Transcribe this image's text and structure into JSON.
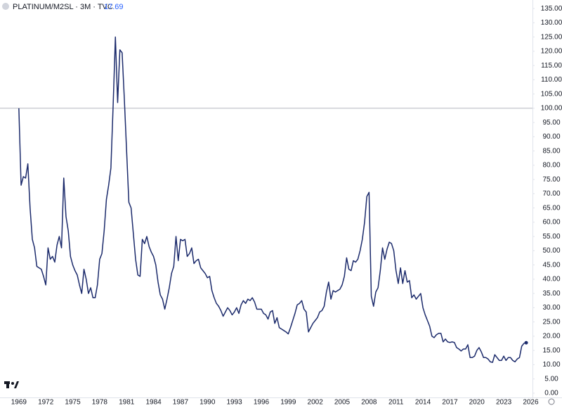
{
  "chart_data": {
    "type": "line",
    "title": "PLATINUM/M2SL · 3M · TVC",
    "last_value": 17.69,
    "reference_line": 100,
    "xlim": [
      1966.9,
      2026.2
    ],
    "ylim": [
      -1.5,
      138
    ],
    "xticks": [
      1969,
      1972,
      1975,
      1978,
      1981,
      1984,
      1987,
      1990,
      1993,
      1996,
      1999,
      2002,
      2005,
      2008,
      2011,
      2014,
      2017,
      2020,
      2023,
      2026
    ],
    "yticks": [
      {
        "value": 0,
        "label": "0.00"
      },
      {
        "value": 5,
        "label": "5.00"
      },
      {
        "value": 10,
        "label": "10.00"
      },
      {
        "value": 15,
        "label": "15.00"
      },
      {
        "value": 20,
        "label": "20.00"
      },
      {
        "value": 25,
        "label": "25.00"
      },
      {
        "value": 30,
        "label": "30.00"
      },
      {
        "value": 35,
        "label": "35.00"
      },
      {
        "value": 40,
        "label": "40.00"
      },
      {
        "value": 45,
        "label": "45.00"
      },
      {
        "value": 50,
        "label": "50.00"
      },
      {
        "value": 55,
        "label": "55.00"
      },
      {
        "value": 60,
        "label": "60.00"
      },
      {
        "value": 65,
        "label": "65.00"
      },
      {
        "value": 70,
        "label": "70.00"
      },
      {
        "value": 75,
        "label": "75.00"
      },
      {
        "value": 80,
        "label": "80.00"
      },
      {
        "value": 85,
        "label": "85.00"
      },
      {
        "value": 90,
        "label": "90.00"
      },
      {
        "value": 95,
        "label": "95.00"
      },
      {
        "value": 100,
        "label": "100.00"
      },
      {
        "value": 105,
        "label": "105.00"
      },
      {
        "value": 110,
        "label": "110.00"
      },
      {
        "value": 115,
        "label": "115.00"
      },
      {
        "value": 120,
        "label": "120.00"
      },
      {
        "value": 125,
        "label": "125.00"
      },
      {
        "value": 130,
        "label": "130.00"
      },
      {
        "value": 135,
        "label": "135.00"
      }
    ],
    "x": [
      1969,
      1969.25,
      1969.5,
      1969.75,
      1970,
      1970.25,
      1970.5,
      1970.75,
      1971,
      1971.25,
      1971.5,
      1971.75,
      1972,
      1972.25,
      1972.5,
      1972.75,
      1973,
      1973.25,
      1973.5,
      1973.75,
      1974,
      1974.25,
      1974.5,
      1974.75,
      1975,
      1975.25,
      1975.5,
      1975.75,
      1976,
      1976.25,
      1976.5,
      1976.75,
      1977,
      1977.25,
      1977.5,
      1977.75,
      1978,
      1978.25,
      1978.5,
      1978.75,
      1979,
      1979.25,
      1979.5,
      1979.75,
      1980,
      1980.25,
      1980.5,
      1980.75,
      1981,
      1981.25,
      1981.5,
      1981.75,
      1982,
      1982.25,
      1982.5,
      1982.75,
      1983,
      1983.25,
      1983.5,
      1983.75,
      1984,
      1984.25,
      1984.5,
      1984.75,
      1985,
      1985.25,
      1985.5,
      1985.75,
      1986,
      1986.25,
      1986.5,
      1986.75,
      1987,
      1987.25,
      1987.5,
      1987.75,
      1988,
      1988.25,
      1988.5,
      1988.75,
      1989,
      1989.25,
      1989.5,
      1989.75,
      1990,
      1990.25,
      1990.5,
      1990.75,
      1991,
      1991.25,
      1991.5,
      1991.75,
      1992,
      1992.25,
      1992.5,
      1992.75,
      1993,
      1993.25,
      1993.5,
      1993.75,
      1994,
      1994.25,
      1994.5,
      1994.75,
      1995,
      1995.25,
      1995.5,
      1995.75,
      1996,
      1996.25,
      1996.5,
      1996.75,
      1997,
      1997.25,
      1997.5,
      1997.75,
      1998,
      1998.25,
      1998.5,
      1998.75,
      1999,
      1999.25,
      1999.5,
      1999.75,
      2000,
      2000.25,
      2000.5,
      2000.75,
      2001,
      2001.25,
      2001.5,
      2001.75,
      2002,
      2002.25,
      2002.5,
      2002.75,
      2003,
      2003.25,
      2003.5,
      2003.75,
      2004,
      2004.25,
      2004.5,
      2004.75,
      2005,
      2005.25,
      2005.5,
      2005.75,
      2006,
      2006.25,
      2006.5,
      2006.75,
      2007,
      2007.25,
      2007.5,
      2007.75,
      2008,
      2008.25,
      2008.5,
      2008.75,
      2009,
      2009.25,
      2009.5,
      2009.75,
      2010,
      2010.25,
      2010.5,
      2010.75,
      2011,
      2011.25,
      2011.5,
      2011.75,
      2012,
      2012.25,
      2012.5,
      2012.75,
      2013,
      2013.25,
      2013.5,
      2013.75,
      2014,
      2014.25,
      2014.5,
      2014.75,
      2015,
      2015.25,
      2015.5,
      2015.75,
      2016,
      2016.25,
      2016.5,
      2016.75,
      2017,
      2017.25,
      2017.5,
      2017.75,
      2018,
      2018.25,
      2018.5,
      2018.75,
      2019,
      2019.25,
      2019.5,
      2019.75,
      2020,
      2020.25,
      2020.5,
      2020.75,
      2021,
      2021.25,
      2021.5,
      2021.75,
      2022,
      2022.25,
      2022.5,
      2022.75,
      2023,
      2023.25,
      2023.5,
      2023.75,
      2024,
      2024.25,
      2024.5,
      2024.75,
      2025,
      2025.25,
      2025.5
    ],
    "series": [
      {
        "name": "PLATINUM/M2SL",
        "color": "#1b2a6b",
        "values": [
          100,
          73,
          76,
          75.5,
          80.5,
          65,
          54,
          51,
          44.5,
          44,
          43.5,
          41,
          38,
          51,
          47,
          48,
          46,
          52,
          55,
          51,
          75.5,
          62,
          57,
          48,
          45,
          43,
          41.5,
          38,
          35,
          43.5,
          40,
          35,
          37,
          33.5,
          33.5,
          38,
          47,
          49,
          57,
          68,
          73,
          79,
          101,
          125,
          102,
          120.5,
          119.5,
          103,
          85,
          67,
          65,
          56,
          47,
          41.5,
          41,
          54,
          52.5,
          55,
          51.5,
          49.5,
          48,
          45,
          39,
          34.5,
          33,
          29.5,
          33,
          37,
          42,
          44.5,
          55,
          46.5,
          54,
          53.5,
          54,
          48,
          49,
          51,
          45.5,
          46.5,
          47,
          44,
          43,
          42,
          40.5,
          41,
          36,
          33.5,
          31.5,
          30.5,
          29,
          27,
          28.5,
          30,
          29,
          27.5,
          28.5,
          30,
          28,
          31,
          32.5,
          31.5,
          33,
          32.5,
          33.5,
          32,
          29.5,
          29.5,
          29.5,
          28,
          27.5,
          26,
          28.5,
          29,
          24.5,
          26.5,
          23,
          22.5,
          22,
          21.5,
          20.8,
          23,
          25.5,
          28,
          31,
          31.5,
          32.5,
          29.5,
          28.5,
          21.5,
          23,
          24.5,
          25.5,
          26.5,
          28.5,
          29,
          30.5,
          35.5,
          39,
          33,
          36,
          35.5,
          36,
          36.5,
          38,
          41,
          47.5,
          43.5,
          43,
          46.5,
          46,
          47,
          50,
          54,
          60,
          69,
          70.5,
          34,
          30.5,
          35.5,
          37,
          43,
          51,
          47,
          50.5,
          53,
          52.5,
          50,
          43,
          38.5,
          44,
          38.5,
          43,
          39,
          39.5,
          33.5,
          34.5,
          33,
          34,
          35,
          30,
          27.5,
          25.5,
          23.5,
          20,
          19.5,
          20.5,
          21,
          21,
          18,
          19,
          18,
          17.8,
          18,
          17.8,
          16,
          15.5,
          14.8,
          15.5,
          15.5,
          17,
          12.5,
          12.5,
          13,
          15,
          16,
          14.5,
          12.5,
          12.5,
          12,
          11,
          10.8,
          13.5,
          12.5,
          11.5,
          11.5,
          13,
          11.5,
          12.5,
          12.5,
          11.5,
          11,
          12,
          12.5,
          16.5,
          17.5,
          17.69
        ]
      }
    ]
  }
}
